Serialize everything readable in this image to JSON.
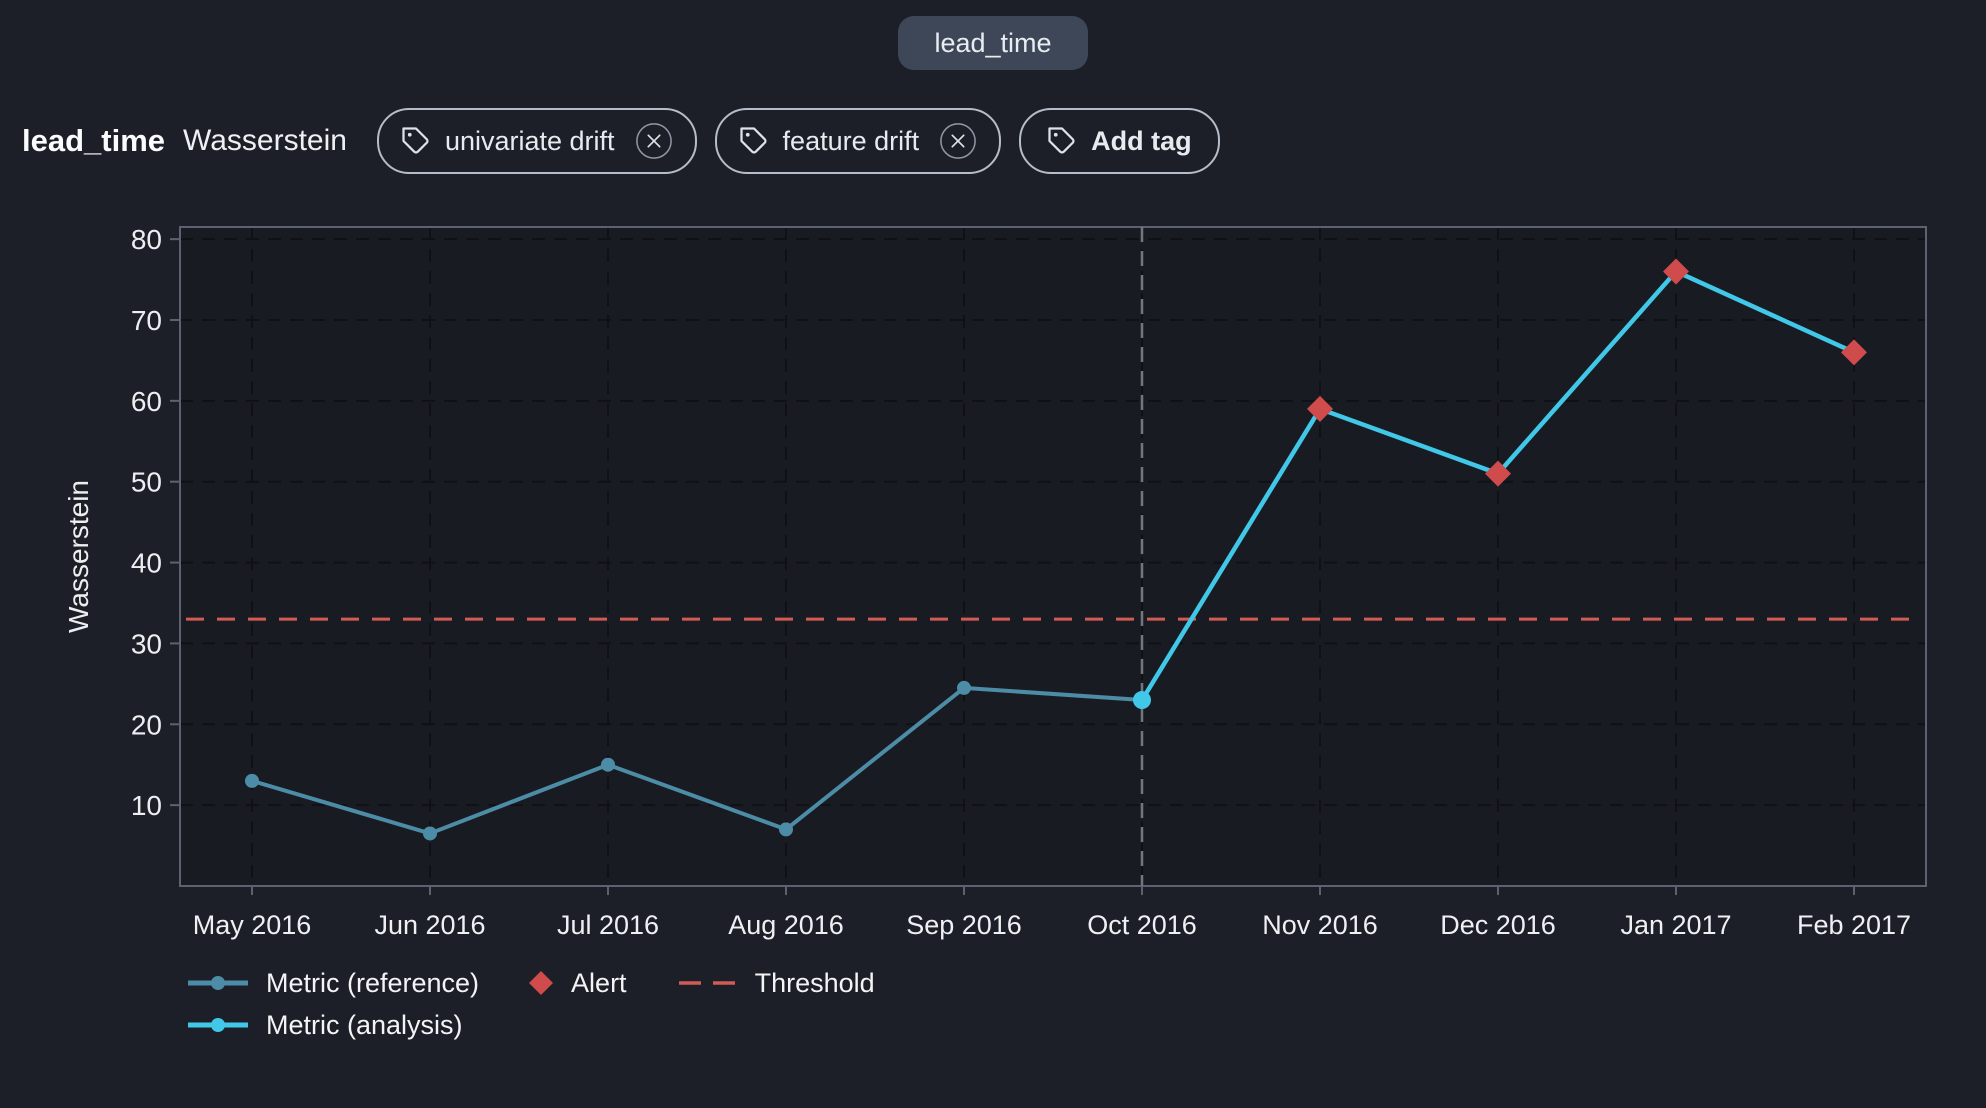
{
  "top_pill": {
    "label": "lead_time"
  },
  "header": {
    "feature_name": "lead_time",
    "metric_name": "Wasserstein",
    "tags": [
      {
        "label": "univariate drift",
        "removable": true
      },
      {
        "label": "feature drift",
        "removable": true
      }
    ],
    "add_tag_label": "Add tag"
  },
  "chart_data": {
    "type": "line",
    "title": "",
    "xlabel": "",
    "ylabel": "Wasserstein",
    "categories": [
      "May 2016",
      "Jun 2016",
      "Jul 2016",
      "Aug 2016",
      "Sep 2016",
      "Oct 2016",
      "Nov 2016",
      "Dec 2016",
      "Jan 2017",
      "Feb 2017"
    ],
    "series": [
      {
        "name": "Metric (reference)",
        "color": "#4d8ca6",
        "values": [
          13,
          6.5,
          15,
          7,
          24.5,
          23,
          null,
          null,
          null,
          null
        ]
      },
      {
        "name": "Metric (analysis)",
        "color": "#41c8e9",
        "values": [
          null,
          null,
          null,
          null,
          null,
          23,
          59,
          51,
          76,
          66
        ]
      }
    ],
    "alerts": {
      "name": "Alert",
      "color": "#d04b4b",
      "points": [
        {
          "x": "Nov 2016",
          "y": 59
        },
        {
          "x": "Dec 2016",
          "y": 51
        },
        {
          "x": "Jan 2017",
          "y": 76
        },
        {
          "x": "Feb 2017",
          "y": 66
        }
      ]
    },
    "threshold": {
      "name": "Threshold",
      "value": 33,
      "color": "#d15b55"
    },
    "separator_x": "Oct 2016",
    "ylim": [
      0,
      81.5
    ],
    "yticks": [
      10,
      20,
      30,
      40,
      50,
      60,
      70,
      80
    ],
    "grid": true,
    "legend_position": "bottom-left"
  }
}
